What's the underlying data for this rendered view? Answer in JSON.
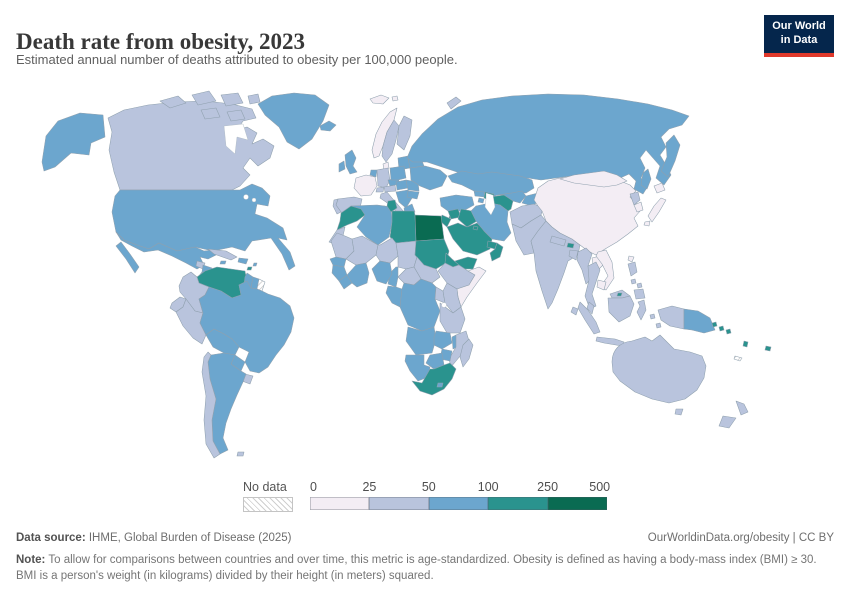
{
  "header": {
    "title": "Death rate from obesity, 2023",
    "subtitle": "Estimated annual number of deaths attributed to obesity per 100,000 people.",
    "logo_line1": "Our World",
    "logo_line2": "in Data",
    "logo_bg": "#05264c",
    "logo_accent": "#e0392b"
  },
  "legend": {
    "no_data_label": "No data",
    "ticks": [
      "0",
      "25",
      "50",
      "100",
      "250",
      "500"
    ]
  },
  "footer": {
    "source_label": "Data source:",
    "source_text": " IHME, Global Burden of Disease (2025)",
    "link_text": "OurWorldinData.org/obesity | CC BY",
    "note_label": "Note:",
    "note_text": " To allow for comparisons between countries and over time, this metric is age-standardized. Obesity is defined as having a body-mass index (BMI) ≥ 30. BMI is a person's weight (in kilograms) divided by their height (in meters) squared."
  },
  "chart_data": {
    "type": "heatmap",
    "subtype": "world-choropleth",
    "title": "Death rate from obesity, 2023",
    "unit": "deaths per 100,000 people",
    "year": "2023",
    "legend_position": "bottom",
    "bins": [
      "0-25",
      "25-50",
      "50-100",
      "100-250",
      "250-500"
    ],
    "bin_edges": [
      0,
      25,
      50,
      100,
      250,
      500
    ],
    "palette": {
      "0-25": "#f3edf4",
      "25-50": "#b9c4dd",
      "50-100": "#6ca6ce",
      "100-250": "#2a938e",
      "250-500": "#0a6b52"
    },
    "no_data_fill": "hatch",
    "border_color": "#8fa0ae",
    "ocean_color": "#ffffff",
    "regions": {
      "alaska": {
        "name": "United States (Alaska)",
        "bin": "50-100"
      },
      "usa": {
        "name": "United States",
        "bin": "50-100"
      },
      "canada": {
        "name": "Canada",
        "bin": "25-50"
      },
      "arctic-islands": {
        "name": "Canadian Arctic islands",
        "bin": "25-50"
      },
      "greenland": {
        "name": "Greenland",
        "bin": "50-100"
      },
      "mexico": {
        "name": "Mexico",
        "bin": "50-100"
      },
      "guatemala-belize": {
        "name": "Guatemala and Belize",
        "bin": "25-50"
      },
      "honduras-nicaragua": {
        "name": "Honduras and Nicaragua",
        "bin": "50-100"
      },
      "costa-panama": {
        "name": "Costa Rica and Panama",
        "bin": "50-100"
      },
      "cuba": {
        "name": "Cuba",
        "bin": "25-50"
      },
      "hispaniola": {
        "name": "Haiti and Dominican Republic",
        "bin": "50-100"
      },
      "jamaica": {
        "name": "Jamaica",
        "bin": "50-100"
      },
      "lesser-antilles": {
        "name": "Lesser Antilles",
        "bin": "50-100"
      },
      "trinidad": {
        "name": "Trinidad and Tobago",
        "bin": "100-250"
      },
      "venezuela": {
        "name": "Venezuela",
        "bin": "100-250"
      },
      "colombia": {
        "name": "Colombia",
        "bin": "25-50"
      },
      "guyana": {
        "name": "Guyana",
        "bin": "50-100"
      },
      "suriname": {
        "name": "Suriname",
        "bin": "50-100"
      },
      "french-guiana": {
        "name": "French Guiana",
        "bin": "no-data"
      },
      "ecuador": {
        "name": "Ecuador",
        "bin": "25-50"
      },
      "peru": {
        "name": "Peru",
        "bin": "25-50"
      },
      "brazil": {
        "name": "Brazil",
        "bin": "50-100"
      },
      "bolivia": {
        "name": "Bolivia",
        "bin": "50-100"
      },
      "paraguay": {
        "name": "Paraguay",
        "bin": "50-100"
      },
      "uruguay": {
        "name": "Uruguay",
        "bin": "25-50"
      },
      "argentina": {
        "name": "Argentina",
        "bin": "50-100"
      },
      "chile": {
        "name": "Chile",
        "bin": "25-50"
      },
      "falkland": {
        "name": "Falkland Islands",
        "bin": "25-50"
      },
      "iceland": {
        "name": "Iceland",
        "bin": "50-100"
      },
      "ireland": {
        "name": "Ireland",
        "bin": "50-100"
      },
      "uk": {
        "name": "United Kingdom",
        "bin": "50-100"
      },
      "norway": {
        "name": "Norway",
        "bin": "0-25"
      },
      "sweden": {
        "name": "Sweden",
        "bin": "25-50"
      },
      "finland": {
        "name": "Finland",
        "bin": "25-50"
      },
      "denmark": {
        "name": "Denmark",
        "bin": "0-25"
      },
      "baltics": {
        "name": "Baltic states",
        "bin": "50-100"
      },
      "france": {
        "name": "France",
        "bin": "0-25"
      },
      "spain": {
        "name": "Spain",
        "bin": "25-50"
      },
      "portugal": {
        "name": "Portugal",
        "bin": "25-50"
      },
      "germany": {
        "name": "Germany",
        "bin": "25-50"
      },
      "benelux": {
        "name": "Benelux",
        "bin": "50-100"
      },
      "switzerland": {
        "name": "Switzerland",
        "bin": "25-50"
      },
      "austria": {
        "name": "Austria",
        "bin": "25-50"
      },
      "czechia": {
        "name": "Czechia",
        "bin": "50-100"
      },
      "poland": {
        "name": "Poland",
        "bin": "50-100"
      },
      "italy": {
        "name": "Italy",
        "bin": "25-50"
      },
      "hungary-slovakia": {
        "name": "Hungary and Slovakia",
        "bin": "50-100"
      },
      "balkans": {
        "name": "Western Balkans",
        "bin": "50-100"
      },
      "greece": {
        "name": "Greece",
        "bin": "50-100"
      },
      "romania": {
        "name": "Romania",
        "bin": "50-100"
      },
      "bulgaria": {
        "name": "Bulgaria",
        "bin": "50-100"
      },
      "ukraine": {
        "name": "Ukraine",
        "bin": "50-100"
      },
      "belarus": {
        "name": "Belarus",
        "bin": "50-100"
      },
      "russia": {
        "name": "Russia",
        "bin": "50-100"
      },
      "svalbard": {
        "name": "Svalbard",
        "bin": "0-25"
      },
      "novaya-zemlya": {
        "name": "Novaya Zemlya",
        "bin": "25-50"
      },
      "turkey": {
        "name": "Turkey",
        "bin": "50-100"
      },
      "cyprus": {
        "name": "Cyprus",
        "bin": "100-250"
      },
      "georgia": {
        "name": "Georgia",
        "bin": "50-100"
      },
      "armenia": {
        "name": "Armenia",
        "bin": "50-100"
      },
      "azerbaijan": {
        "name": "Azerbaijan",
        "bin": "100-250"
      },
      "syria": {
        "name": "Syria",
        "bin": "100-250"
      },
      "iraq": {
        "name": "Iraq",
        "bin": "100-250"
      },
      "jordan-israel": {
        "name": "Jordan, Israel and Lebanon",
        "bin": "100-250"
      },
      "saudi-arabia": {
        "name": "Saudi Arabia",
        "bin": "100-250"
      },
      "kuwait": {
        "name": "Kuwait",
        "bin": "100-250"
      },
      "qatar-uae": {
        "name": "Qatar and UAE",
        "bin": "100-250"
      },
      "oman": {
        "name": "Oman",
        "bin": "100-250"
      },
      "yemen": {
        "name": "Yemen",
        "bin": "100-250"
      },
      "iran": {
        "name": "Iran",
        "bin": "50-100"
      },
      "kazakhstan": {
        "name": "Kazakhstan",
        "bin": "50-100"
      },
      "uzbekistan": {
        "name": "Uzbekistan",
        "bin": "50-100"
      },
      "turkmenistan": {
        "name": "Turkmenistan",
        "bin": "100-250"
      },
      "kyrgyz-tajik": {
        "name": "Kyrgyzstan and Tajikistan",
        "bin": "50-100"
      },
      "afghanistan": {
        "name": "Afghanistan",
        "bin": "25-50"
      },
      "pakistan": {
        "name": "Pakistan",
        "bin": "25-50"
      },
      "india": {
        "name": "India",
        "bin": "25-50"
      },
      "nepal": {
        "name": "Nepal",
        "bin": "25-50"
      },
      "bhutan": {
        "name": "Bhutan",
        "bin": "100-250"
      },
      "bangladesh": {
        "name": "Bangladesh",
        "bin": "25-50"
      },
      "sri-lanka": {
        "name": "Sri Lanka",
        "bin": "25-50"
      },
      "china": {
        "name": "China",
        "bin": "0-25"
      },
      "mongolia": {
        "name": "Mongolia",
        "bin": "0-25"
      },
      "north-korea": {
        "name": "North Korea",
        "bin": "25-50"
      },
      "south-korea": {
        "name": "South Korea",
        "bin": "0-25"
      },
      "japan": {
        "name": "Japan",
        "bin": "0-25"
      },
      "taiwan": {
        "name": "Taiwan",
        "bin": "0-25"
      },
      "myanmar": {
        "name": "Myanmar",
        "bin": "25-50"
      },
      "thailand": {
        "name": "Thailand",
        "bin": "25-50"
      },
      "laos": {
        "name": "Laos",
        "bin": "0-25"
      },
      "vietnam": {
        "name": "Vietnam",
        "bin": "0-25"
      },
      "cambodia": {
        "name": "Cambodia",
        "bin": "0-25"
      },
      "malaysia": {
        "name": "Malaysia",
        "bin": "25-50"
      },
      "brunei": {
        "name": "Brunei",
        "bin": "100-250"
      },
      "indonesia": {
        "name": "Indonesia",
        "bin": "25-50"
      },
      "png": {
        "name": "Papua New Guinea",
        "bin": "50-100"
      },
      "philippines": {
        "name": "Philippines",
        "bin": "25-50"
      },
      "australia": {
        "name": "Australia",
        "bin": "25-50"
      },
      "new-zealand": {
        "name": "New Zealand",
        "bin": "25-50"
      },
      "fiji": {
        "name": "Fiji",
        "bin": "100-250"
      },
      "vanuatu": {
        "name": "Vanuatu",
        "bin": "100-250"
      },
      "solomon": {
        "name": "Solomon Islands",
        "bin": "100-250"
      },
      "new-caledonia": {
        "name": "New Caledonia",
        "bin": "no-data"
      },
      "morocco": {
        "name": "Morocco",
        "bin": "100-250"
      },
      "western-sahara": {
        "name": "Western Sahara",
        "bin": "25-50"
      },
      "algeria": {
        "name": "Algeria",
        "bin": "50-100"
      },
      "tunisia": {
        "name": "Tunisia",
        "bin": "100-250"
      },
      "libya": {
        "name": "Libya",
        "bin": "100-250"
      },
      "egypt": {
        "name": "Egypt",
        "bin": "250-500"
      },
      "mauritania": {
        "name": "Mauritania",
        "bin": "25-50"
      },
      "mali": {
        "name": "Mali",
        "bin": "25-50"
      },
      "niger": {
        "name": "Niger",
        "bin": "25-50"
      },
      "chad": {
        "name": "Chad",
        "bin": "25-50"
      },
      "sudan": {
        "name": "Sudan",
        "bin": "100-250"
      },
      "eritrea": {
        "name": "Eritrea",
        "bin": "100-250"
      },
      "djibouti": {
        "name": "Djibouti",
        "bin": "100-250"
      },
      "ethiopia": {
        "name": "Ethiopia",
        "bin": "25-50"
      },
      "somalia": {
        "name": "Somalia",
        "bin": "0-25"
      },
      "south-sudan": {
        "name": "South Sudan",
        "bin": "25-50"
      },
      "car": {
        "name": "Central African Republic",
        "bin": "25-50"
      },
      "cameroon": {
        "name": "Cameroon",
        "bin": "50-100"
      },
      "nigeria": {
        "name": "Nigeria",
        "bin": "50-100"
      },
      "senegal": {
        "name": "Senegal",
        "bin": "50-100"
      },
      "guinea": {
        "name": "Guinea",
        "bin": "50-100"
      },
      "sierra-liberia": {
        "name": "Sierra Leone and Liberia",
        "bin": "50-100"
      },
      "ivory-ghana": {
        "name": "Côte d'Ivoire and Ghana",
        "bin": "50-100"
      },
      "gabon-congo": {
        "name": "Gabon and Congo",
        "bin": "50-100"
      },
      "dr-congo": {
        "name": "Democratic Republic of Congo",
        "bin": "50-100"
      },
      "uganda": {
        "name": "Uganda",
        "bin": "25-50"
      },
      "kenya": {
        "name": "Kenya",
        "bin": "25-50"
      },
      "tanzania": {
        "name": "Tanzania",
        "bin": "25-50"
      },
      "angola": {
        "name": "Angola",
        "bin": "50-100"
      },
      "zambia": {
        "name": "Zambia",
        "bin": "50-100"
      },
      "malawi": {
        "name": "Malawi",
        "bin": "50-100"
      },
      "mozambique": {
        "name": "Mozambique",
        "bin": "25-50"
      },
      "zimbabwe": {
        "name": "Zimbabwe",
        "bin": "50-100"
      },
      "botswana": {
        "name": "Botswana",
        "bin": "50-100"
      },
      "namibia": {
        "name": "Namibia",
        "bin": "50-100"
      },
      "south-africa": {
        "name": "South Africa",
        "bin": "100-250"
      },
      "lesotho": {
        "name": "Lesotho",
        "bin": "50-100"
      },
      "madagascar": {
        "name": "Madagascar",
        "bin": "25-50"
      }
    }
  }
}
